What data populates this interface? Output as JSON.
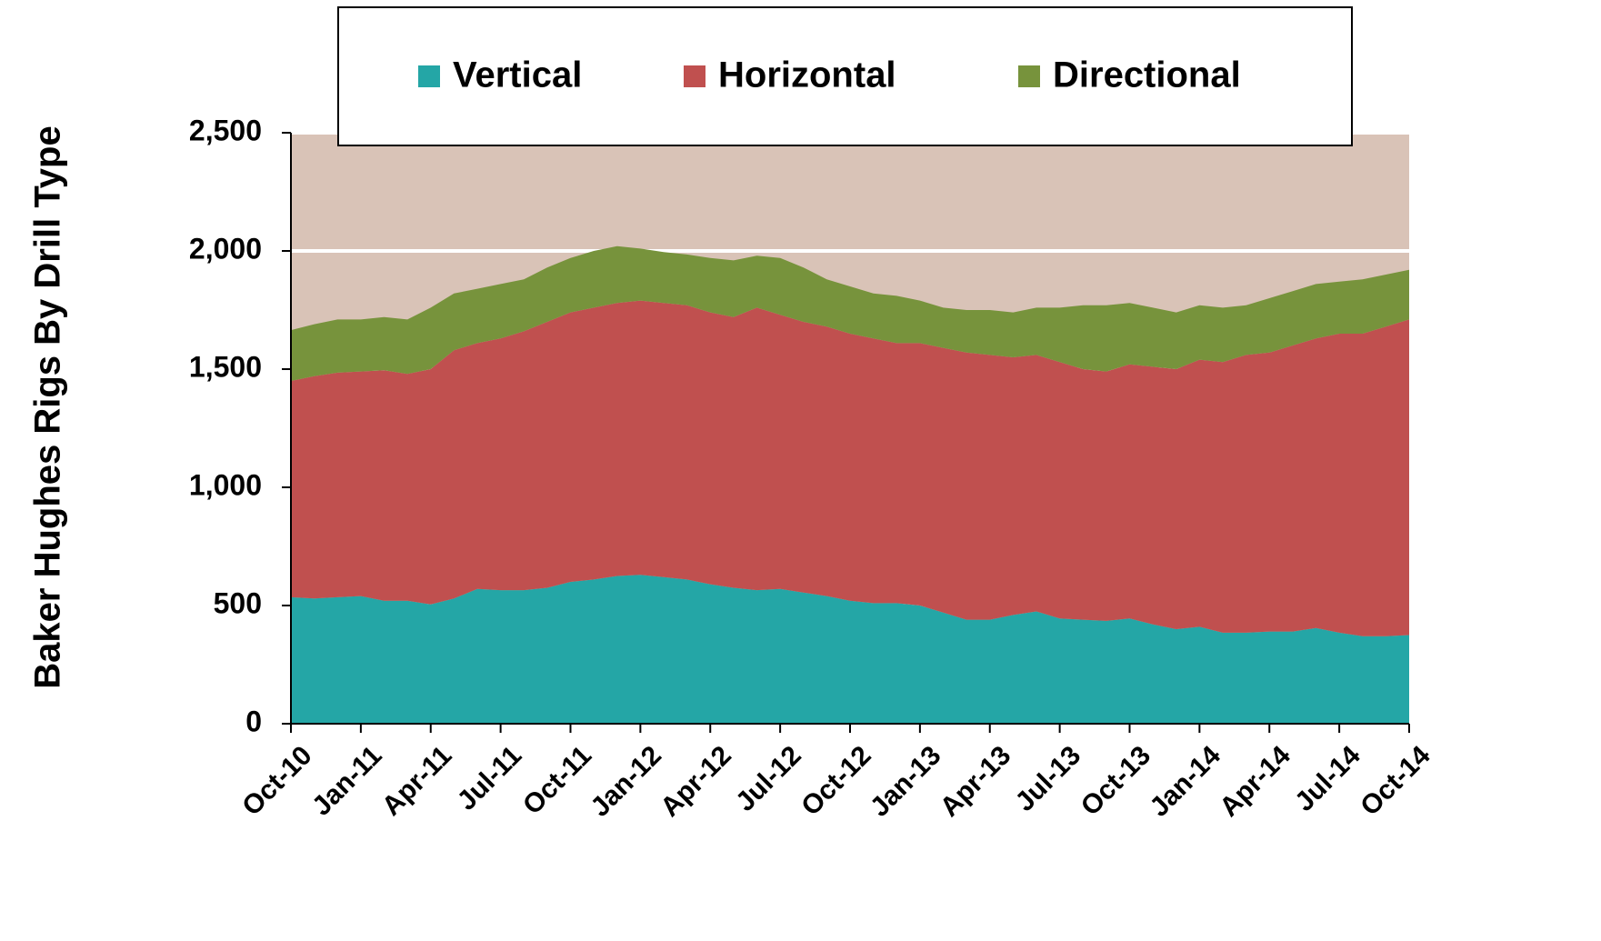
{
  "chart_data": {
    "type": "stacked-area",
    "y_label": "Baker Hughes Rigs By Drill Type",
    "categories": [
      "Oct-10",
      null,
      null,
      "Jan-11",
      null,
      null,
      "Apr-11",
      null,
      null,
      "Jul-11",
      null,
      null,
      "Oct-11",
      null,
      null,
      "Jan-12",
      null,
      null,
      "Apr-12",
      null,
      null,
      "Jul-12",
      null,
      null,
      "Oct-12",
      null,
      null,
      "Jan-13",
      null,
      null,
      "Apr-13",
      null,
      null,
      "Jul-13",
      null,
      null,
      "Oct-13",
      null,
      null,
      "Jan-14",
      null,
      null,
      "Apr-14",
      null,
      null,
      "Jul-14",
      null,
      null,
      "Oct-14"
    ],
    "series": [
      {
        "name": "Vertical",
        "color": "#24a6a6",
        "values": [
          535,
          530,
          535,
          540,
          520,
          520,
          505,
          530,
          570,
          565,
          565,
          575,
          600,
          610,
          625,
          630,
          620,
          610,
          590,
          575,
          565,
          570,
          555,
          540,
          520,
          510,
          510,
          500,
          470,
          440,
          440,
          460,
          475,
          445,
          440,
          435,
          445,
          420,
          400,
          410,
          385,
          385,
          390,
          390,
          405,
          385,
          370,
          370,
          375
        ]
      },
      {
        "name": "Horizontal",
        "color": "#c0504f",
        "values": [
          915,
          940,
          950,
          950,
          975,
          960,
          995,
          1050,
          1040,
          1065,
          1095,
          1125,
          1140,
          1150,
          1155,
          1160,
          1160,
          1160,
          1150,
          1145,
          1195,
          1160,
          1145,
          1140,
          1130,
          1120,
          1100,
          1110,
          1120,
          1130,
          1120,
          1090,
          1085,
          1085,
          1060,
          1055,
          1075,
          1090,
          1100,
          1130,
          1145,
          1175,
          1180,
          1210,
          1225,
          1265,
          1280,
          1310,
          1335
        ]
      },
      {
        "name": "Directional",
        "color": "#77933c",
        "values": [
          215,
          220,
          225,
          220,
          225,
          230,
          260,
          240,
          230,
          230,
          220,
          230,
          230,
          240,
          240,
          220,
          215,
          215,
          230,
          240,
          220,
          240,
          230,
          200,
          200,
          190,
          200,
          180,
          170,
          180,
          190,
          190,
          200,
          230,
          270,
          280,
          260,
          250,
          240,
          230,
          230,
          210,
          230,
          230,
          230,
          220,
          230,
          220,
          210
        ]
      }
    ],
    "ylim": [
      0,
      2500
    ],
    "yticks": [
      0,
      {
        "value": 500,
        "label": "500"
      },
      {
        "value": 1000,
        "label": "1,000"
      },
      {
        "value": 1500,
        "label": "1,500"
      },
      {
        "value": 2000,
        "label": "2,000"
      },
      {
        "value": 2500,
        "label": "2,500"
      }
    ],
    "background": "#d9c3b7",
    "grid": true,
    "grid_color": "#ffffff",
    "legend": "top"
  }
}
